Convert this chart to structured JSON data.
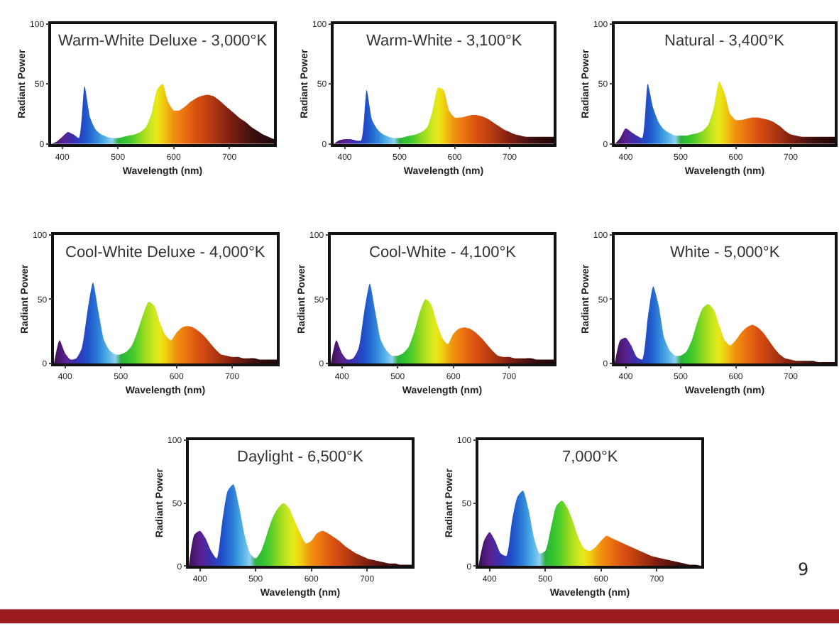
{
  "chart_data": [
    {
      "type": "area",
      "title": "Warm-White Deluxe - 3,000°K",
      "xlabel": "Wavelength (nm)",
      "ylabel": "Radiant Power",
      "xlim": [
        380,
        780
      ],
      "ylim": [
        0,
        100
      ],
      "xticks": [
        400,
        500,
        600,
        700
      ],
      "yticks": [
        0,
        50,
        100
      ],
      "x": [
        380,
        390,
        400,
        410,
        420,
        430,
        440,
        450,
        460,
        470,
        480,
        490,
        500,
        510,
        520,
        530,
        540,
        550,
        560,
        570,
        580,
        590,
        600,
        610,
        620,
        630,
        640,
        650,
        660,
        670,
        680,
        690,
        700,
        710,
        720,
        730,
        740,
        750,
        760,
        770,
        780
      ],
      "values": [
        0,
        2,
        6,
        10,
        8,
        5,
        48,
        22,
        12,
        8,
        6,
        5,
        5,
        6,
        7,
        8,
        10,
        14,
        25,
        45,
        50,
        35,
        28,
        28,
        31,
        35,
        38,
        40,
        41,
        40,
        37,
        33,
        29,
        25,
        21,
        18,
        14,
        11,
        8,
        6,
        4
      ],
      "colors": [
        "#3a1050",
        "#4a1870",
        "#5a2090",
        "#4a2aa0",
        "#3a30b0",
        "#2a40c0",
        "#2050c8",
        "#2468d0",
        "#3080d8",
        "#40a0e0",
        "#60b8e8",
        "#90d0f0",
        "#30b040",
        "#30c030",
        "#40c830",
        "#60d028",
        "#90d820",
        "#b0e020",
        "#d0e820",
        "#e8e818",
        "#f0d010",
        "#f0b010",
        "#f09010",
        "#f08010",
        "#e87010",
        "#e06010",
        "#d85010",
        "#d04810",
        "#c04010",
        "#b03810",
        "#a03010",
        "#902810",
        "#802010",
        "#701c10",
        "#601810",
        "#501410",
        "#401010",
        "#380c0c",
        "#300a0a",
        "#280808",
        "#200808"
      ]
    },
    {
      "type": "area",
      "title": "Warm-White - 3,100°K",
      "xlabel": "Wavelength (nm)",
      "ylabel": "Radiant Power",
      "xlim": [
        380,
        780
      ],
      "ylim": [
        0,
        100
      ],
      "xticks": [
        400,
        500,
        600,
        700
      ],
      "yticks": [
        0,
        50,
        100
      ],
      "x": [
        380,
        390,
        400,
        410,
        420,
        430,
        440,
        450,
        460,
        470,
        480,
        490,
        500,
        510,
        520,
        530,
        540,
        550,
        560,
        570,
        580,
        590,
        600,
        610,
        620,
        630,
        640,
        650,
        660,
        670,
        680,
        690,
        700,
        710,
        720,
        730,
        740,
        750,
        760,
        770,
        780
      ],
      "values": [
        0,
        3,
        4,
        4,
        3,
        3,
        45,
        20,
        12,
        8,
        6,
        5,
        5,
        6,
        7,
        8,
        10,
        14,
        28,
        47,
        45,
        28,
        22,
        22,
        23,
        24,
        24,
        23,
        21,
        18,
        15,
        12,
        10,
        8,
        7,
        6,
        6,
        6,
        6,
        6,
        6
      ],
      "colors": [
        "#3a1050",
        "#4a1870",
        "#5a2090",
        "#4a2aa0",
        "#3a30b0",
        "#2a40c0",
        "#2050c8",
        "#2468d0",
        "#3080d8",
        "#40a0e0",
        "#60b8e8",
        "#90d0f0",
        "#30b040",
        "#30c030",
        "#40c830",
        "#60d028",
        "#90d820",
        "#b0e020",
        "#d0e820",
        "#e8e818",
        "#f0d010",
        "#f0b010",
        "#f09010",
        "#f08010",
        "#e87010",
        "#e06010",
        "#d85010",
        "#d04810",
        "#c04010",
        "#b03810",
        "#a03010",
        "#902810",
        "#802010",
        "#701c10",
        "#601810",
        "#501410",
        "#401010",
        "#380c0c",
        "#300a0a",
        "#280808",
        "#200808"
      ]
    },
    {
      "type": "area",
      "title": "Natural - 3,400°K",
      "xlabel": "Wavelength (nm)",
      "ylabel": "Radiant Power",
      "xlim": [
        380,
        780
      ],
      "ylim": [
        0,
        100
      ],
      "xticks": [
        400,
        500,
        600,
        700
      ],
      "yticks": [
        0,
        50,
        100
      ],
      "x": [
        380,
        390,
        400,
        410,
        420,
        430,
        440,
        450,
        460,
        470,
        480,
        490,
        500,
        510,
        520,
        530,
        540,
        550,
        560,
        570,
        580,
        590,
        600,
        610,
        620,
        630,
        640,
        650,
        660,
        670,
        680,
        690,
        700,
        710,
        720,
        730,
        740,
        750,
        760,
        770,
        780
      ],
      "values": [
        0,
        5,
        13,
        10,
        7,
        5,
        50,
        30,
        18,
        12,
        9,
        7,
        7,
        7,
        8,
        9,
        11,
        16,
        30,
        52,
        42,
        25,
        20,
        20,
        21,
        22,
        22,
        21,
        20,
        18,
        15,
        11,
        8,
        7,
        6,
        6,
        6,
        6,
        6,
        6,
        6
      ],
      "colors": [
        "#3a1050",
        "#4a1870",
        "#5a2090",
        "#4a2aa0",
        "#3a30b0",
        "#2a40c0",
        "#2050c8",
        "#2468d0",
        "#3080d8",
        "#40a0e0",
        "#60b8e8",
        "#90d0f0",
        "#30b040",
        "#30c030",
        "#40c830",
        "#60d028",
        "#90d820",
        "#b0e020",
        "#d0e820",
        "#e8e818",
        "#f0d010",
        "#f0b010",
        "#f09010",
        "#f08010",
        "#e87010",
        "#e06010",
        "#d85010",
        "#d04810",
        "#c04010",
        "#b03810",
        "#a03010",
        "#902810",
        "#802010",
        "#701c10",
        "#601810",
        "#501410",
        "#401010",
        "#380c0c",
        "#300a0a",
        "#280808",
        "#200808"
      ]
    },
    {
      "type": "area",
      "title": "Cool-White Deluxe - 4,000°K",
      "xlabel": "Wavelength (nm)",
      "ylabel": "Radiant Power",
      "xlim": [
        380,
        780
      ],
      "ylim": [
        0,
        100
      ],
      "xticks": [
        400,
        500,
        600,
        700
      ],
      "yticks": [
        0,
        50,
        100
      ],
      "x": [
        380,
        390,
        400,
        410,
        420,
        430,
        440,
        450,
        460,
        470,
        480,
        490,
        500,
        510,
        520,
        530,
        540,
        550,
        560,
        570,
        580,
        590,
        600,
        610,
        620,
        630,
        640,
        650,
        660,
        670,
        680,
        690,
        700,
        710,
        720,
        730,
        740,
        750,
        760,
        770,
        780
      ],
      "values": [
        0,
        18,
        8,
        3,
        4,
        12,
        40,
        63,
        40,
        18,
        10,
        7,
        7,
        9,
        14,
        25,
        38,
        48,
        45,
        32,
        22,
        18,
        24,
        28,
        29,
        28,
        25,
        21,
        16,
        11,
        7,
        6,
        5,
        5,
        4,
        4,
        4,
        3,
        3,
        3,
        3
      ],
      "colors": [
        "#3a1050",
        "#4a1870",
        "#5a2090",
        "#4a2aa0",
        "#3a30b0",
        "#2a40c0",
        "#2050c8",
        "#2468d0",
        "#3080d8",
        "#40a0e0",
        "#60b8e8",
        "#90d0f0",
        "#30b040",
        "#30c030",
        "#40c830",
        "#60d028",
        "#90d820",
        "#b0e020",
        "#d0e820",
        "#e8e818",
        "#f0d010",
        "#f0b010",
        "#f09010",
        "#f08010",
        "#e87010",
        "#e06010",
        "#d85010",
        "#d04810",
        "#c04010",
        "#b03810",
        "#a03010",
        "#902810",
        "#802010",
        "#701c10",
        "#601810",
        "#501410",
        "#401010",
        "#380c0c",
        "#300a0a",
        "#280808",
        "#200808"
      ]
    },
    {
      "type": "area",
      "title": "Cool-White - 4,100°K",
      "xlabel": "Wavelength (nm)",
      "ylabel": "Radiant Power",
      "xlim": [
        380,
        780
      ],
      "ylim": [
        0,
        100
      ],
      "xticks": [
        400,
        500,
        600,
        700
      ],
      "yticks": [
        0,
        50,
        100
      ],
      "x": [
        380,
        390,
        400,
        410,
        420,
        430,
        440,
        450,
        460,
        470,
        480,
        490,
        500,
        510,
        520,
        530,
        540,
        550,
        560,
        570,
        580,
        590,
        600,
        610,
        620,
        630,
        640,
        650,
        660,
        670,
        680,
        690,
        700,
        710,
        720,
        730,
        740,
        750,
        760,
        770,
        780
      ],
      "values": [
        0,
        18,
        8,
        3,
        4,
        12,
        40,
        62,
        40,
        18,
        10,
        6,
        6,
        8,
        13,
        25,
        40,
        50,
        46,
        32,
        20,
        15,
        23,
        27,
        28,
        27,
        24,
        20,
        15,
        10,
        6,
        5,
        5,
        4,
        4,
        4,
        4,
        3,
        3,
        3,
        3
      ],
      "colors": [
        "#3a1050",
        "#4a1870",
        "#5a2090",
        "#4a2aa0",
        "#3a30b0",
        "#2a40c0",
        "#2050c8",
        "#2468d0",
        "#3080d8",
        "#40a0e0",
        "#60b8e8",
        "#90d0f0",
        "#30b040",
        "#30c030",
        "#40c830",
        "#60d028",
        "#90d820",
        "#b0e020",
        "#d0e820",
        "#e8e818",
        "#f0d010",
        "#f0b010",
        "#f09010",
        "#f08010",
        "#e87010",
        "#e06010",
        "#d85010",
        "#d04810",
        "#c04010",
        "#b03810",
        "#a03010",
        "#902810",
        "#802010",
        "#701c10",
        "#601810",
        "#501410",
        "#401010",
        "#380c0c",
        "#300a0a",
        "#280808",
        "#200808"
      ]
    },
    {
      "type": "area",
      "title": "White - 5,000°K",
      "xlabel": "Wavelength (nm)",
      "ylabel": "Radiant Power",
      "xlim": [
        380,
        780
      ],
      "ylim": [
        0,
        100
      ],
      "xticks": [
        400,
        500,
        600,
        700
      ],
      "yticks": [
        0,
        50,
        100
      ],
      "x": [
        380,
        390,
        400,
        410,
        420,
        430,
        440,
        450,
        460,
        470,
        480,
        490,
        500,
        510,
        520,
        530,
        540,
        550,
        560,
        570,
        580,
        590,
        600,
        610,
        620,
        630,
        640,
        650,
        660,
        670,
        680,
        690,
        700,
        710,
        720,
        730,
        740,
        750,
        760,
        770,
        780
      ],
      "values": [
        0,
        18,
        20,
        14,
        5,
        3,
        35,
        60,
        45,
        20,
        10,
        6,
        6,
        9,
        18,
        32,
        43,
        46,
        42,
        30,
        18,
        14,
        18,
        24,
        28,
        30,
        28,
        24,
        18,
        12,
        7,
        4,
        3,
        2,
        2,
        2,
        2,
        1,
        1,
        1,
        1
      ],
      "colors": [
        "#3a1050",
        "#4a1870",
        "#5a2090",
        "#4a2aa0",
        "#3a30b0",
        "#2a40c0",
        "#2050c8",
        "#2468d0",
        "#3080d8",
        "#40a0e0",
        "#60b8e8",
        "#90d0f0",
        "#30b040",
        "#30c030",
        "#40c830",
        "#60d028",
        "#90d820",
        "#b0e020",
        "#d0e820",
        "#e8e818",
        "#f0d010",
        "#f0b010",
        "#f09010",
        "#f08010",
        "#e87010",
        "#e06010",
        "#d85010",
        "#d04810",
        "#c04010",
        "#b03810",
        "#a03010",
        "#902810",
        "#802010",
        "#701c10",
        "#601810",
        "#501410",
        "#401010",
        "#380c0c",
        "#300a0a",
        "#280808",
        "#200808"
      ]
    },
    {
      "type": "area",
      "title": "Daylight - 6,500°K",
      "xlabel": "Wavelength (nm)",
      "ylabel": "Radiant Power",
      "xlim": [
        380,
        780
      ],
      "ylim": [
        0,
        100
      ],
      "xticks": [
        400,
        500,
        600,
        700
      ],
      "yticks": [
        0,
        50,
        100
      ],
      "x": [
        380,
        390,
        400,
        410,
        420,
        430,
        440,
        450,
        460,
        470,
        480,
        490,
        500,
        510,
        520,
        530,
        540,
        550,
        560,
        570,
        580,
        590,
        600,
        610,
        620,
        630,
        640,
        650,
        660,
        670,
        680,
        690,
        700,
        710,
        720,
        730,
        740,
        750,
        760,
        770,
        780
      ],
      "values": [
        0,
        25,
        28,
        22,
        12,
        6,
        35,
        60,
        65,
        48,
        25,
        10,
        6,
        12,
        25,
        38,
        46,
        50,
        46,
        36,
        26,
        18,
        20,
        26,
        28,
        26,
        23,
        20,
        16,
        13,
        10,
        8,
        6,
        5,
        4,
        3,
        2,
        2,
        1,
        1,
        1
      ],
      "colors": [
        "#3a1050",
        "#4a1870",
        "#5a2090",
        "#4a2aa0",
        "#3a30b0",
        "#2a40c0",
        "#2050c8",
        "#2468d0",
        "#3080d8",
        "#40a0e0",
        "#60b8e8",
        "#90d0f0",
        "#30b040",
        "#30c030",
        "#40c830",
        "#60d028",
        "#90d820",
        "#b0e020",
        "#d0e820",
        "#e8e818",
        "#f0d010",
        "#f0b010",
        "#f09010",
        "#f08010",
        "#e87010",
        "#e06010",
        "#d85010",
        "#d04810",
        "#c04010",
        "#b03810",
        "#a03010",
        "#902810",
        "#802010",
        "#701c10",
        "#601810",
        "#501410",
        "#401010",
        "#380c0c",
        "#300a0a",
        "#280808",
        "#200808"
      ]
    },
    {
      "type": "area",
      "title": "7,000°K",
      "xlabel": "Wavelength (nm)",
      "ylabel": "Radiant Power",
      "xlim": [
        380,
        780
      ],
      "ylim": [
        0,
        100
      ],
      "xticks": [
        400,
        500,
        600,
        700
      ],
      "yticks": [
        0,
        50,
        100
      ],
      "annotations": [
        "9"
      ],
      "x": [
        380,
        390,
        400,
        410,
        420,
        430,
        440,
        450,
        460,
        470,
        480,
        490,
        500,
        510,
        520,
        530,
        540,
        550,
        560,
        570,
        580,
        590,
        600,
        610,
        620,
        630,
        640,
        650,
        660,
        670,
        680,
        690,
        700,
        710,
        720,
        730,
        740,
        750,
        760,
        770,
        780
      ],
      "values": [
        0,
        20,
        27,
        20,
        10,
        8,
        35,
        55,
        60,
        45,
        22,
        10,
        12,
        30,
        48,
        52,
        46,
        35,
        22,
        14,
        12,
        15,
        20,
        24,
        22,
        20,
        18,
        16,
        14,
        12,
        10,
        8,
        7,
        6,
        5,
        4,
        3,
        2,
        1,
        1,
        0
      ],
      "colors": [
        "#3a1050",
        "#4a1870",
        "#5a2090",
        "#4a2aa0",
        "#3a30b0",
        "#2a40c0",
        "#2050c8",
        "#2468d0",
        "#3080d8",
        "#40a0e0",
        "#60b8e8",
        "#90d0f0",
        "#30b040",
        "#30c030",
        "#40c830",
        "#60d028",
        "#90d820",
        "#b0e020",
        "#d0e820",
        "#e8e818",
        "#f0d010",
        "#f0b010",
        "#f09010",
        "#f08010",
        "#e87010",
        "#e06010",
        "#d85010",
        "#d04810",
        "#c04010",
        "#b03810",
        "#a03010",
        "#902810",
        "#802010",
        "#701c10",
        "#601810",
        "#501410",
        "#401010",
        "#380c0c",
        "#300a0a",
        "#280808",
        "#200808"
      ]
    }
  ]
}
